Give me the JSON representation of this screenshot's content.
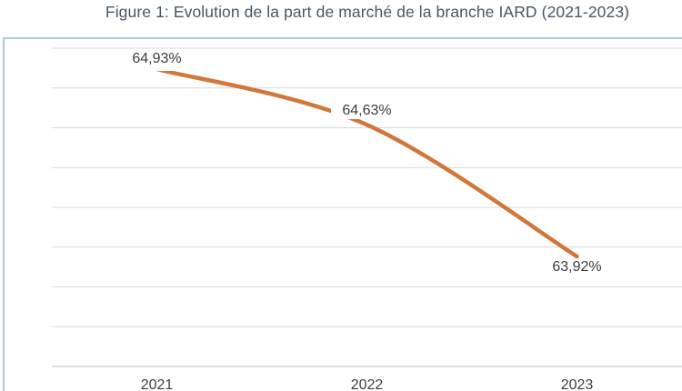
{
  "title": "Figure 1: Evolution de la part de marché de la branche IARD (2021-2023)",
  "chart_data": {
    "type": "line",
    "title": "Figure 1: Evolution de la part de marché de la branche IARD (2021-2023)",
    "categories": [
      "2021",
      "2022",
      "2023"
    ],
    "values": [
      64.93,
      64.63,
      63.92
    ],
    "point_labels": [
      "64,93%",
      "64,63%",
      "63,92%"
    ],
    "label_positions": [
      "above",
      "above",
      "below"
    ],
    "unit": "%",
    "smooth": true,
    "grid": true,
    "legend": "none",
    "y_axis_labels_visible": false,
    "ylim_estimated": [
      63.5,
      65.1
    ],
    "line_color": "#d1773c",
    "gridline_color": "#d9d9d9",
    "axis_color": "#c1c1c1",
    "data_label_color": "#3c3c3c",
    "axis_label_color": "#3f3f3f",
    "title_color": "#475766",
    "frame_border_color": "#aecbd3"
  }
}
